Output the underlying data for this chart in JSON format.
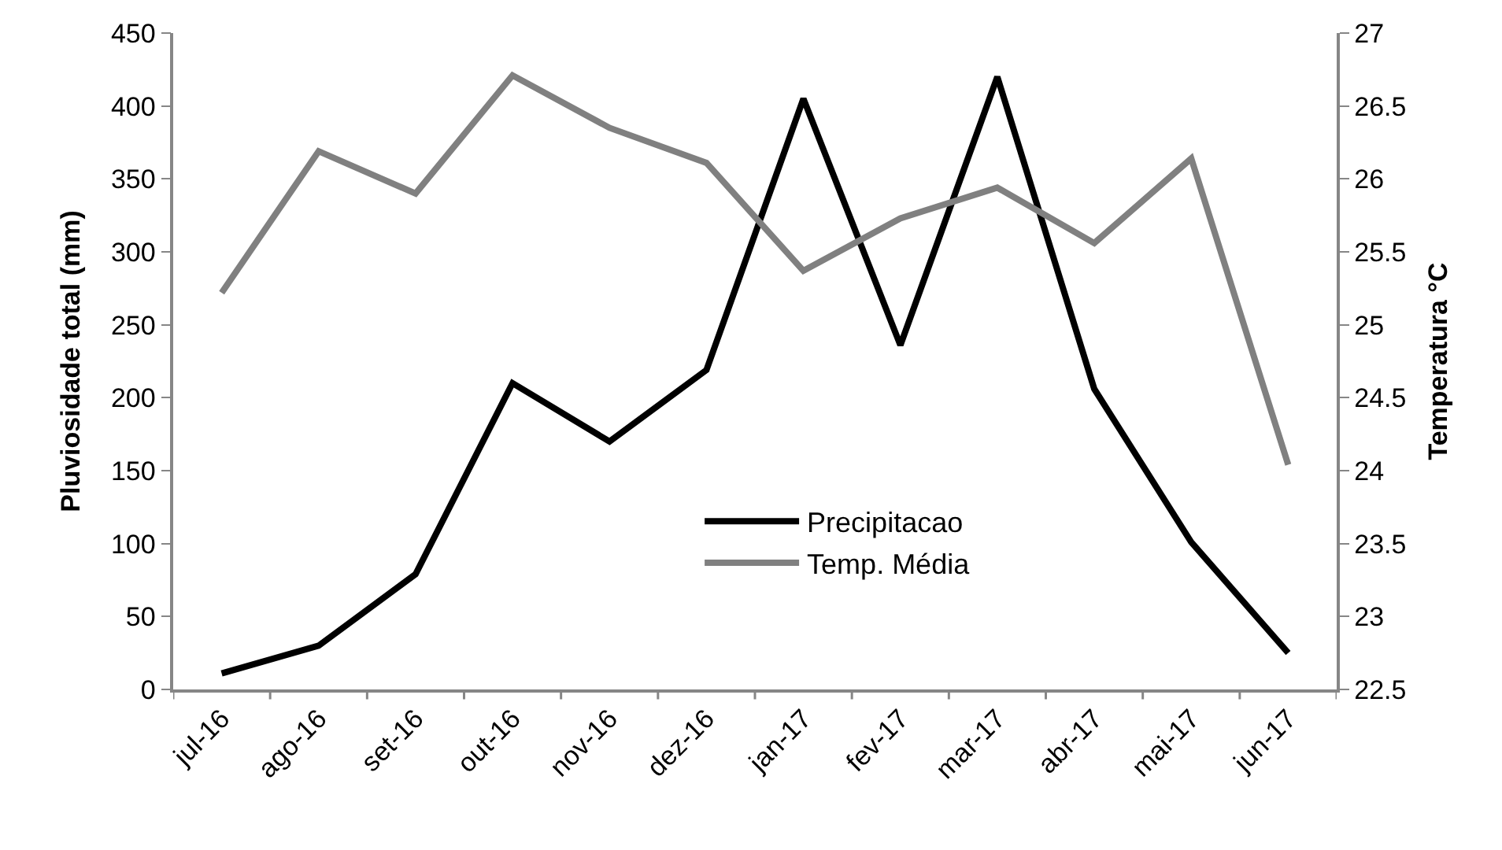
{
  "chart_data": {
    "type": "line",
    "ylabel": "Pluviosidade total (mm)",
    "y2label": "Temperatura °C",
    "categories": [
      "jul-16",
      "ago-16",
      "set-16",
      "out-16",
      "nov-16",
      "dez-16",
      "jan-17",
      "fev-17",
      "mar-17",
      "abr-17",
      "mai-17",
      "jun-17"
    ],
    "series": [
      {
        "name": "Precipitacao",
        "color": "#000000",
        "values": [
          11,
          30,
          79,
          210,
          170,
          219,
          405,
          236,
          420,
          206,
          101,
          25
        ]
      },
      {
        "name": "Temp. Média",
        "color": "#808080",
        "axis": "y2",
        "values": [
          25.22,
          26.19,
          25.9,
          26.71,
          26.35,
          26.11,
          25.37,
          25.73,
          25.94,
          25.56,
          26.14,
          24.04
        ]
      }
    ],
    "ylim": [
      0,
      450
    ],
    "yticks": [
      0,
      50,
      100,
      150,
      200,
      250,
      300,
      350,
      400,
      450
    ],
    "y2lim": [
      22.5,
      27
    ],
    "y2ticks": [
      22.5,
      23,
      23.5,
      24,
      24.5,
      25,
      25.5,
      26,
      26.5,
      27
    ],
    "legend": "bottom",
    "marker": "none",
    "line_style": "solid"
  }
}
